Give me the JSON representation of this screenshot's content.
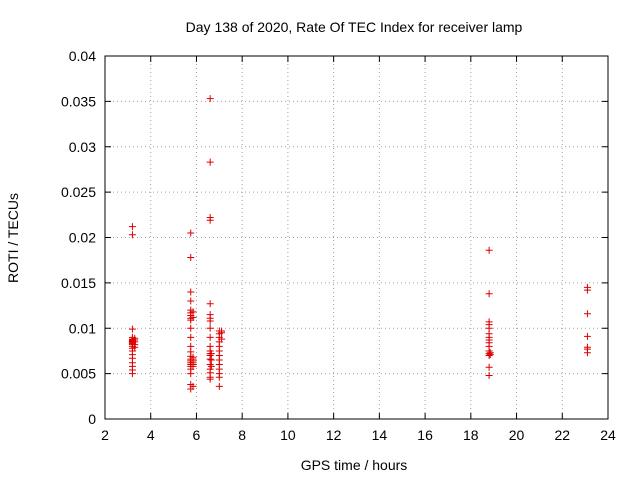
{
  "chart_data": {
    "type": "scatter",
    "title": "Day 138 of 2020, Rate Of TEC Index for receiver lamp",
    "xlabel": "GPS time / hours",
    "ylabel": "ROTI / TECUs",
    "xlim": [
      2,
      24
    ],
    "ylim": [
      0,
      0.04
    ],
    "xticks": [
      2,
      4,
      6,
      8,
      10,
      12,
      14,
      16,
      18,
      20,
      22,
      24
    ],
    "xtick_labels": [
      "2",
      "4",
      "6",
      "8",
      "10",
      "12",
      "14",
      "16",
      "18",
      "20",
      "22",
      "24"
    ],
    "yticks": [
      0,
      0.005,
      0.01,
      0.015,
      0.02,
      0.025,
      0.03,
      0.035,
      0.04
    ],
    "ytick_labels": [
      "0",
      "0.005",
      "0.01",
      "0.015",
      "0.02",
      "0.025",
      "0.03",
      "0.035",
      "0.04"
    ],
    "grid": true,
    "marker": "+",
    "color": "#dd0000",
    "series": [
      {
        "name": "ROTI",
        "points": [
          [
            3.2,
            0.0212
          ],
          [
            3.2,
            0.0203
          ],
          [
            3.2,
            0.0099
          ],
          [
            3.2,
            0.009
          ],
          [
            3.2,
            0.0088
          ],
          [
            3.2,
            0.0087
          ],
          [
            3.2,
            0.0086
          ],
          [
            3.2,
            0.0085
          ],
          [
            3.2,
            0.0084
          ],
          [
            3.2,
            0.0083
          ],
          [
            3.2,
            0.0082
          ],
          [
            3.2,
            0.008
          ],
          [
            3.2,
            0.0078
          ],
          [
            3.2,
            0.0075
          ],
          [
            3.2,
            0.0071
          ],
          [
            3.2,
            0.0067
          ],
          [
            3.2,
            0.0062
          ],
          [
            3.2,
            0.0058
          ],
          [
            3.2,
            0.0054
          ],
          [
            3.2,
            0.005
          ],
          [
            3.3,
            0.0089
          ],
          [
            3.3,
            0.0087
          ],
          [
            3.3,
            0.0085
          ],
          [
            3.3,
            0.0082
          ],
          [
            3.3,
            0.0079
          ],
          [
            5.75,
            0.0205
          ],
          [
            5.75,
            0.0178
          ],
          [
            5.75,
            0.014
          ],
          [
            5.75,
            0.013
          ],
          [
            5.75,
            0.012
          ],
          [
            5.75,
            0.0117
          ],
          [
            5.75,
            0.0114
          ],
          [
            5.75,
            0.0111
          ],
          [
            5.75,
            0.0109
          ],
          [
            5.75,
            0.01
          ],
          [
            5.75,
            0.009
          ],
          [
            5.75,
            0.008
          ],
          [
            5.75,
            0.0074
          ],
          [
            5.75,
            0.0069
          ],
          [
            5.75,
            0.0066
          ],
          [
            5.75,
            0.0064
          ],
          [
            5.75,
            0.0062
          ],
          [
            5.75,
            0.006
          ],
          [
            5.75,
            0.0058
          ],
          [
            5.75,
            0.0055
          ],
          [
            5.75,
            0.005
          ],
          [
            5.75,
            0.0038
          ],
          [
            5.75,
            0.0033
          ],
          [
            5.85,
            0.0118
          ],
          [
            5.85,
            0.0112
          ],
          [
            5.85,
            0.0068
          ],
          [
            5.85,
            0.0066
          ],
          [
            5.85,
            0.0064
          ],
          [
            5.85,
            0.0062
          ],
          [
            5.85,
            0.006
          ],
          [
            5.85,
            0.0058
          ],
          [
            5.85,
            0.0036
          ],
          [
            6.6,
            0.0353
          ],
          [
            6.6,
            0.0283
          ],
          [
            6.6,
            0.0222
          ],
          [
            6.6,
            0.0219
          ],
          [
            6.6,
            0.0127
          ],
          [
            6.6,
            0.0115
          ],
          [
            6.6,
            0.0111
          ],
          [
            6.6,
            0.0108
          ],
          [
            6.6,
            0.01
          ],
          [
            6.6,
            0.009
          ],
          [
            6.6,
            0.008
          ],
          [
            6.6,
            0.0075
          ],
          [
            6.6,
            0.0072
          ],
          [
            6.6,
            0.007
          ],
          [
            6.6,
            0.0066
          ],
          [
            6.6,
            0.006
          ],
          [
            6.6,
            0.0055
          ],
          [
            6.6,
            0.0051
          ],
          [
            6.6,
            0.0046
          ],
          [
            6.6,
            0.0044
          ],
          [
            6.65,
            0.0072
          ],
          [
            6.65,
            0.0065
          ],
          [
            6.65,
            0.0058
          ],
          [
            7.0,
            0.0097
          ],
          [
            7.0,
            0.0094
          ],
          [
            7.0,
            0.009
          ],
          [
            7.0,
            0.0085
          ],
          [
            7.0,
            0.008
          ],
          [
            7.0,
            0.0075
          ],
          [
            7.0,
            0.007
          ],
          [
            7.0,
            0.0065
          ],
          [
            7.0,
            0.006
          ],
          [
            7.0,
            0.0055
          ],
          [
            7.0,
            0.005
          ],
          [
            7.0,
            0.0046
          ],
          [
            7.0,
            0.0036
          ],
          [
            7.1,
            0.0097
          ],
          [
            7.1,
            0.0095
          ],
          [
            7.1,
            0.0088
          ],
          [
            18.8,
            0.0186
          ],
          [
            18.8,
            0.0138
          ],
          [
            18.8,
            0.0107
          ],
          [
            18.8,
            0.0104
          ],
          [
            18.8,
            0.01
          ],
          [
            18.8,
            0.0094
          ],
          [
            18.8,
            0.009
          ],
          [
            18.8,
            0.0087
          ],
          [
            18.8,
            0.0084
          ],
          [
            18.8,
            0.008
          ],
          [
            18.8,
            0.0075
          ],
          [
            18.8,
            0.0072
          ],
          [
            18.8,
            0.007
          ],
          [
            18.8,
            0.0057
          ],
          [
            18.8,
            0.0048
          ],
          [
            18.85,
            0.0073
          ],
          [
            18.85,
            0.0071
          ],
          [
            23.1,
            0.0145
          ],
          [
            23.1,
            0.0142
          ],
          [
            23.1,
            0.0116
          ],
          [
            23.1,
            0.0091
          ],
          [
            23.1,
            0.0079
          ],
          [
            23.1,
            0.0077
          ],
          [
            23.1,
            0.0073
          ]
        ]
      }
    ]
  }
}
